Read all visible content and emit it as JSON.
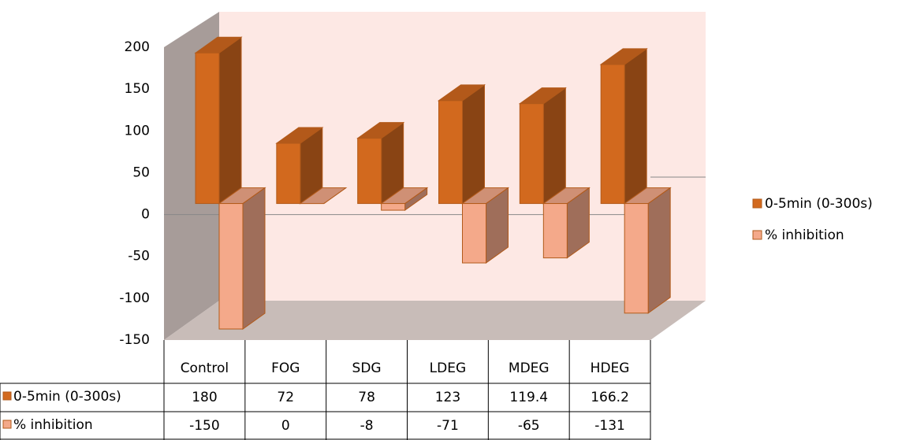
{
  "chart_data": {
    "type": "bar",
    "categories": [
      "Control",
      "FOG",
      "SDG",
      "LDEG",
      "MDEG",
      "HDEG"
    ],
    "series": [
      {
        "name": "0-5min (0-300s)",
        "color": "#d2691e",
        "values": [
          180,
          72,
          78,
          123,
          119.4,
          166.2
        ]
      },
      {
        "name": "% inhibition",
        "color": "#f4a98a",
        "values": [
          -150,
          0,
          -8,
          -71,
          -65,
          -131
        ]
      }
    ],
    "ylim": [
      -150,
      200
    ],
    "yticks": [
      -150,
      -100,
      -50,
      0,
      50,
      100,
      150,
      200
    ],
    "legend": "right"
  }
}
